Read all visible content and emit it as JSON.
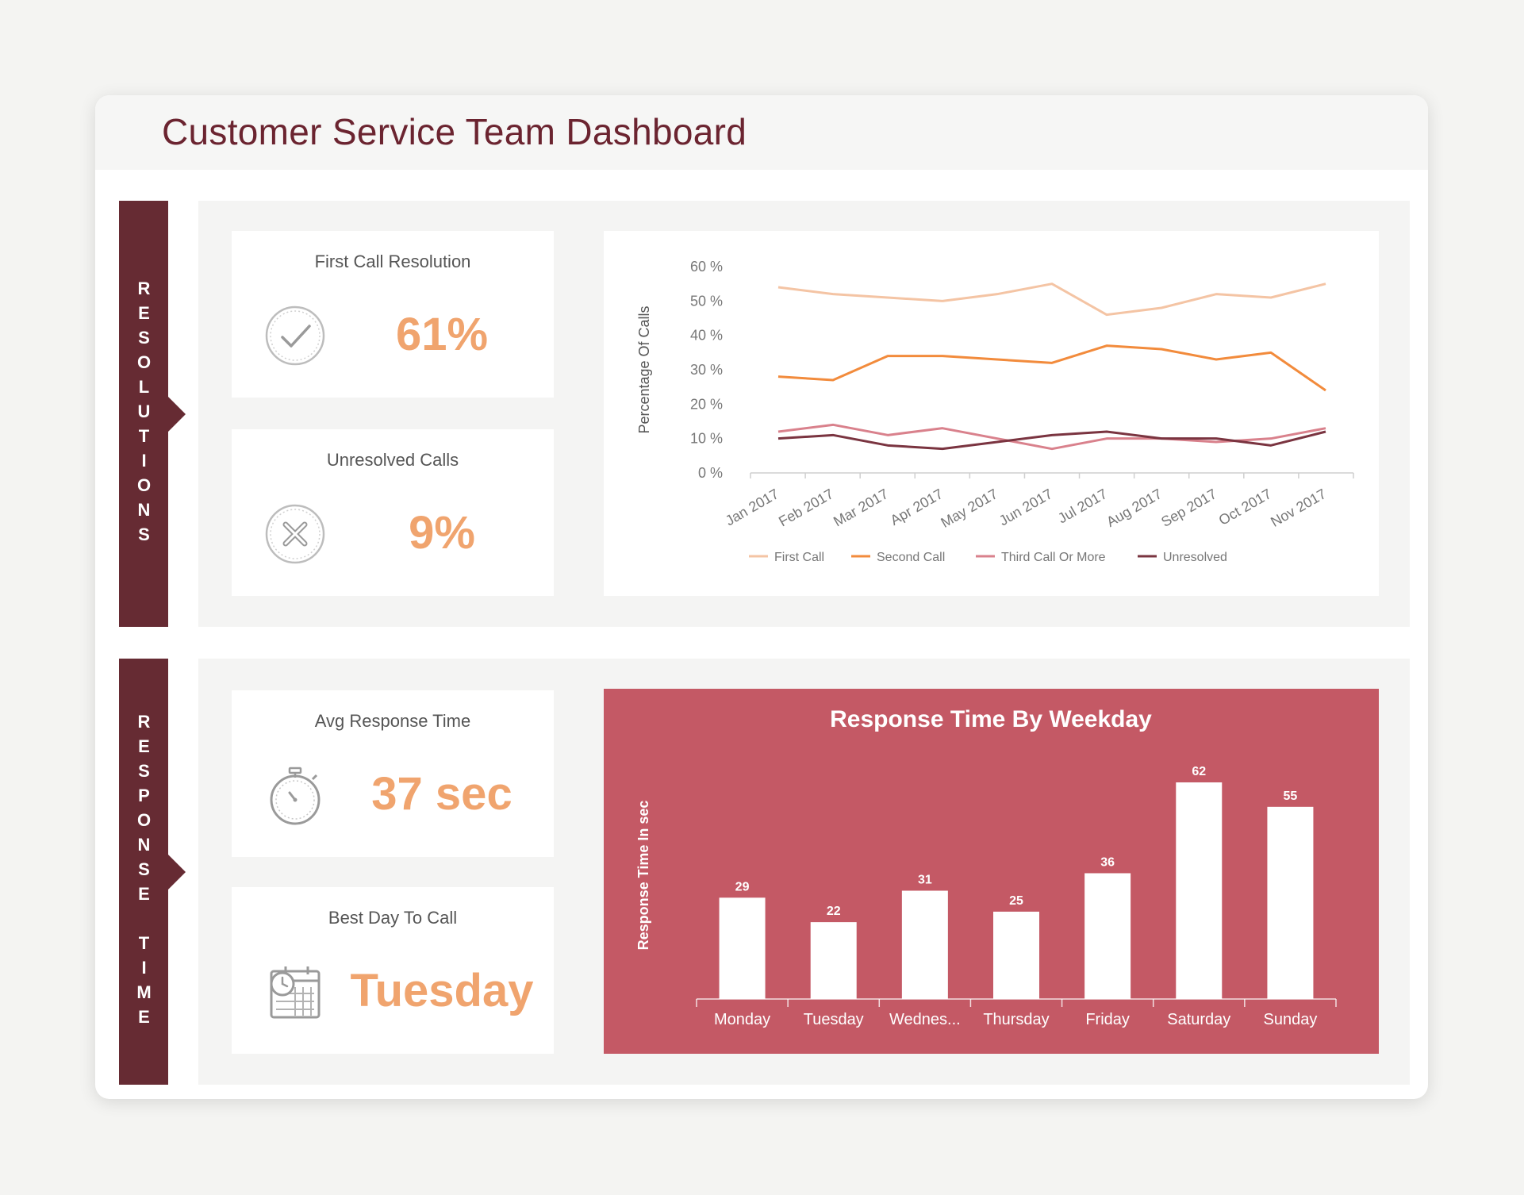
{
  "page": {
    "title": "Customer Service Team Dashboard"
  },
  "sections": {
    "resolutions": {
      "label": "RESOLUTIONS",
      "kpis": [
        {
          "title": "First Call Resolution",
          "value": "61%",
          "icon": "checkmark-circle-icon"
        },
        {
          "title": "Unresolved Calls",
          "value": "9%",
          "icon": "x-circle-icon"
        }
      ]
    },
    "response_time": {
      "label": "RESPONSE TIME",
      "kpis": [
        {
          "title": "Avg Response Time",
          "value": "37 sec",
          "icon": "stopwatch-icon"
        },
        {
          "title": "Best Day To Call",
          "value": "Tuesday",
          "icon": "calendar-clock-icon"
        }
      ]
    }
  },
  "colors": {
    "brand": "#662b33",
    "kpi_value": "#f0a46e",
    "bar_panel": "#c45965",
    "first_call": "#f4c4a4",
    "second_call": "#f28b3c",
    "third_call": "#d9818c",
    "unresolved": "#7a3440"
  },
  "chart_data": [
    {
      "type": "line",
      "title": "",
      "xlabel": "",
      "ylabel": "Percentage Of Calls",
      "x": [
        "Jan 2017",
        "Feb 2017",
        "Mar 2017",
        "Apr 2017",
        "May 2017",
        "Jun 2017",
        "Jul 2017",
        "Aug 2017",
        "Sep 2017",
        "Oct 2017",
        "Nov 2017"
      ],
      "yticks": [
        "0 %",
        "10 %",
        "20 %",
        "30 %",
        "40 %",
        "50 %",
        "60 %"
      ],
      "ylim": [
        0,
        60
      ],
      "legend": "bottom",
      "grid": false,
      "series": [
        {
          "name": "First Call",
          "color": "#f4c4a4",
          "values": [
            54,
            52,
            51,
            50,
            52,
            55,
            46,
            48,
            52,
            51,
            55
          ]
        },
        {
          "name": "Second Call",
          "color": "#f28b3c",
          "values": [
            28,
            27,
            34,
            34,
            33,
            32,
            37,
            36,
            33,
            35,
            24
          ]
        },
        {
          "name": "Third Call Or More",
          "color": "#d9818c",
          "values": [
            12,
            14,
            11,
            13,
            10,
            7,
            10,
            10,
            9,
            10,
            13
          ]
        },
        {
          "name": "Unresolved",
          "color": "#7a3440",
          "values": [
            10,
            11,
            8,
            7,
            9,
            11,
            12,
            10,
            10,
            8,
            12
          ]
        }
      ]
    },
    {
      "type": "bar",
      "title": "Response Time By Weekday",
      "xlabel": "",
      "ylabel": "Response Time In sec",
      "categories": [
        "Monday",
        "Tuesday",
        "Wednes...",
        "Thursday",
        "Friday",
        "Saturday",
        "Sunday"
      ],
      "values": [
        29,
        22,
        31,
        25,
        36,
        62,
        55
      ],
      "data_labels": [
        "29",
        "22",
        "31",
        "25",
        "36",
        "62",
        "55"
      ],
      "ylim": [
        0,
        62
      ],
      "grid": false
    }
  ]
}
